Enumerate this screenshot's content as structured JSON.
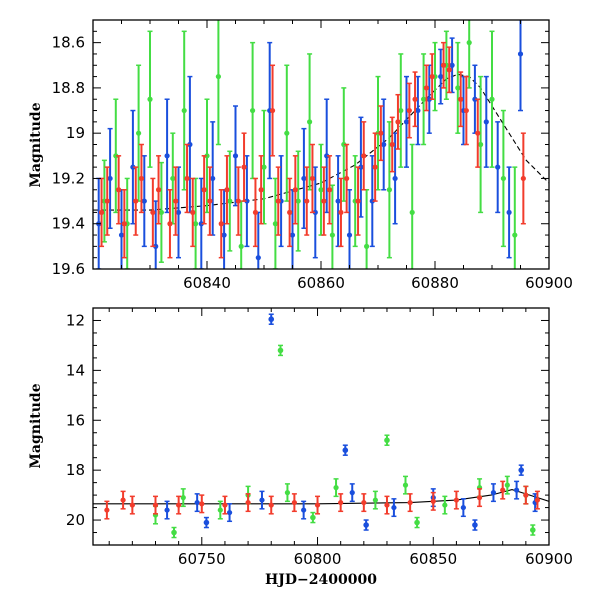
{
  "colors": {
    "g": "#44dd44",
    "b": "#1a4fdd",
    "r": "#f23c2c",
    "model": "#000000"
  },
  "chart_data": [
    {
      "type": "scatter",
      "ylabel": "Magnitude",
      "xlabel": "",
      "xlim": [
        60820,
        60900
      ],
      "ylim": [
        19.6,
        18.5
      ],
      "y_inverted": true,
      "xticks": [
        60840,
        60860,
        60880,
        60900
      ],
      "yticks": [
        18.6,
        18.8,
        19,
        19.2,
        19.4,
        19.6
      ],
      "tick_labels_x": [
        "60840",
        "60860",
        "60880",
        "60900"
      ],
      "tick_labels_y": [
        "18.6",
        "18.8",
        "19",
        "19.2",
        "19.4",
        "19.6"
      ],
      "series": [
        {
          "color_key": "g",
          "points": [
            [
              60822,
              19.3,
              0.18
            ],
            [
              60824,
              19.1,
              0.25
            ],
            [
              60826,
              19.4,
              0.2
            ],
            [
              60828,
              19.0,
              0.3
            ],
            [
              60830,
              18.85,
              0.3
            ],
            [
              60832,
              19.35,
              0.22
            ],
            [
              60834,
              19.2,
              0.2
            ],
            [
              60836,
              18.9,
              0.35
            ],
            [
              60838,
              19.4,
              0.2
            ],
            [
              60840,
              19.1,
              0.25
            ],
            [
              60842,
              18.75,
              0.3
            ],
            [
              60844,
              19.3,
              0.22
            ],
            [
              60846,
              19.5,
              0.2
            ],
            [
              60848,
              18.9,
              0.3
            ],
            [
              60850,
              19.15,
              0.25
            ],
            [
              60852,
              19.4,
              0.2
            ],
            [
              60854,
              19.0,
              0.3
            ],
            [
              60856,
              19.3,
              0.22
            ],
            [
              60858,
              18.95,
              0.3
            ],
            [
              60860,
              19.25,
              0.2
            ],
            [
              60862,
              19.45,
              0.22
            ],
            [
              60864,
              19.05,
              0.25
            ],
            [
              60866,
              19.3,
              0.2
            ],
            [
              60868,
              19.5,
              0.25
            ],
            [
              60870,
              19.0,
              0.25
            ],
            [
              60872,
              19.25,
              0.3
            ],
            [
              60874,
              18.9,
              0.25
            ],
            [
              60876,
              19.35,
              0.3
            ],
            [
              60878,
              18.85,
              0.2
            ],
            [
              60880,
              18.75,
              0.15
            ],
            [
              60882,
              18.7,
              0.15
            ],
            [
              60884,
              18.8,
              0.2
            ],
            [
              60886,
              18.6,
              0.2
            ],
            [
              60888,
              19.05,
              0.3
            ],
            [
              60890,
              18.85,
              0.3
            ],
            [
              60892,
              19.2,
              0.3
            ],
            [
              60894,
              19.45,
              0.3
            ]
          ]
        },
        {
          "color_key": "b",
          "points": [
            [
              60821,
              19.4,
              0.2
            ],
            [
              60823,
              19.2,
              0.22
            ],
            [
              60825,
              19.45,
              0.2
            ],
            [
              60827,
              19.15,
              0.25
            ],
            [
              60829,
              19.3,
              0.2
            ],
            [
              60831,
              19.5,
              0.2
            ],
            [
              60833,
              19.1,
              0.25
            ],
            [
              60835,
              19.35,
              0.2
            ],
            [
              60837,
              19.05,
              0.3
            ],
            [
              60839,
              19.4,
              0.2
            ],
            [
              60841,
              19.2,
              0.25
            ],
            [
              60843,
              19.45,
              0.2
            ],
            [
              60845,
              19.1,
              0.22
            ],
            [
              60847,
              19.3,
              0.2
            ],
            [
              60849,
              19.55,
              0.2
            ],
            [
              60851,
              18.9,
              0.3
            ],
            [
              60853,
              19.3,
              0.2
            ],
            [
              60855,
              19.45,
              0.2
            ],
            [
              60857,
              19.2,
              0.22
            ],
            [
              60859,
              19.35,
              0.2
            ],
            [
              60861,
              19.1,
              0.25
            ],
            [
              60863,
              19.3,
              0.2
            ],
            [
              60865,
              19.45,
              0.2
            ],
            [
              60867,
              19.15,
              0.22
            ],
            [
              60869,
              19.3,
              0.2
            ],
            [
              60871,
              19.05,
              0.2
            ],
            [
              60873,
              19.2,
              0.2
            ],
            [
              60875,
              18.95,
              0.2
            ],
            [
              60877,
              18.9,
              0.15
            ],
            [
              60879,
              18.85,
              0.15
            ],
            [
              60881,
              18.75,
              0.12
            ],
            [
              60883,
              18.7,
              0.12
            ],
            [
              60885,
              18.9,
              0.15
            ],
            [
              60887,
              18.85,
              0.15
            ],
            [
              60889,
              18.95,
              0.2
            ],
            [
              60891,
              19.15,
              0.2
            ],
            [
              60893,
              19.35,
              0.2
            ],
            [
              60895,
              18.65,
              0.25
            ]
          ]
        },
        {
          "color_key": "r",
          "points": [
            [
              60821.5,
              19.35,
              0.15
            ],
            [
              60822.5,
              19.3,
              0.15
            ],
            [
              60824.5,
              19.25,
              0.15
            ],
            [
              60825.5,
              19.4,
              0.15
            ],
            [
              60827.5,
              19.3,
              0.15
            ],
            [
              60828.5,
              19.2,
              0.15
            ],
            [
              60830.5,
              19.35,
              0.15
            ],
            [
              60831.5,
              19.25,
              0.15
            ],
            [
              60833.5,
              19.4,
              0.15
            ],
            [
              60834.5,
              19.3,
              0.15
            ],
            [
              60836.5,
              19.2,
              0.15
            ],
            [
              60837.5,
              19.35,
              0.15
            ],
            [
              60839.5,
              19.25,
              0.15
            ],
            [
              60840.5,
              19.3,
              0.15
            ],
            [
              60842.5,
              19.4,
              0.15
            ],
            [
              60843.5,
              19.25,
              0.15
            ],
            [
              60845.5,
              19.3,
              0.15
            ],
            [
              60846.5,
              19.15,
              0.15
            ],
            [
              60848.5,
              19.35,
              0.15
            ],
            [
              60849.5,
              19.25,
              0.15
            ],
            [
              60851.5,
              18.9,
              0.2
            ],
            [
              60852.5,
              19.3,
              0.15
            ],
            [
              60854.5,
              19.35,
              0.15
            ],
            [
              60855.5,
              19.25,
              0.15
            ],
            [
              60857.5,
              19.3,
              0.15
            ],
            [
              60858.5,
              19.2,
              0.15
            ],
            [
              60860.5,
              19.3,
              0.15
            ],
            [
              60861.5,
              19.25,
              0.15
            ],
            [
              60863.5,
              19.35,
              0.15
            ],
            [
              60864.5,
              19.2,
              0.15
            ],
            [
              60866.5,
              19.3,
              0.15
            ],
            [
              60867.5,
              19.1,
              0.15
            ],
            [
              60869.5,
              19.15,
              0.15
            ],
            [
              60870.5,
              19.0,
              0.12
            ],
            [
              60872.5,
              19.05,
              0.12
            ],
            [
              60873.5,
              18.95,
              0.12
            ],
            [
              60875.5,
              18.9,
              0.12
            ],
            [
              60876.5,
              18.85,
              0.12
            ],
            [
              60878.5,
              18.8,
              0.1
            ],
            [
              60879.5,
              18.75,
              0.1
            ],
            [
              60881.5,
              18.7,
              0.1
            ],
            [
              60882.5,
              18.72,
              0.1
            ],
            [
              60884.5,
              18.85,
              0.12
            ],
            [
              60885.5,
              18.9,
              0.15
            ],
            [
              60887.5,
              19.0,
              0.15
            ],
            [
              60895.5,
              19.2,
              0.2
            ]
          ]
        }
      ],
      "model": {
        "style": "dashed",
        "points": [
          [
            60820,
            19.34
          ],
          [
            60830,
            19.34
          ],
          [
            60840,
            19.32
          ],
          [
            60850,
            19.29
          ],
          [
            60860,
            19.22
          ],
          [
            60866,
            19.14
          ],
          [
            60872,
            19.02
          ],
          [
            60878,
            18.86
          ],
          [
            60882,
            18.76
          ],
          [
            60884,
            18.74
          ],
          [
            60886,
            18.75
          ],
          [
            60888,
            18.8
          ],
          [
            60890,
            18.88
          ],
          [
            60893,
            19.0
          ],
          [
            60896,
            19.12
          ],
          [
            60900,
            19.22
          ]
        ]
      }
    },
    {
      "type": "scatter",
      "ylabel": "Magnitude",
      "xlabel": "HJD−2400000",
      "xlim": [
        60703,
        60900
      ],
      "ylim": [
        21,
        11.5
      ],
      "y_inverted": true,
      "xticks": [
        60750,
        60800,
        60850,
        60900
      ],
      "yticks": [
        12,
        14,
        16,
        18,
        20
      ],
      "tick_labels_x": [
        "60750",
        "60800",
        "60850",
        "60900"
      ],
      "tick_labels_y": [
        "12",
        "14",
        "16",
        "18",
        "20"
      ],
      "outliers": [
        [
          60780,
          11.95,
          "b"
        ],
        [
          60784,
          13.2,
          "g"
        ],
        [
          60812,
          17.2,
          "b"
        ],
        [
          60830,
          16.8,
          "g"
        ],
        [
          60738,
          20.5,
          "g"
        ],
        [
          60752,
          20.1,
          "b"
        ],
        [
          60798,
          19.9,
          "g"
        ],
        [
          60821,
          20.2,
          "b"
        ],
        [
          60843,
          20.1,
          "g"
        ],
        [
          60868,
          20.2,
          "b"
        ],
        [
          60888,
          18.0,
          "b"
        ],
        [
          60893,
          20.4,
          "g"
        ]
      ],
      "series": [
        {
          "color_key": "g",
          "points": [
            [
              60730,
              19.8
            ],
            [
              60742,
              19.1
            ],
            [
              60758,
              19.6
            ],
            [
              60770,
              19.0
            ],
            [
              60787,
              18.9
            ],
            [
              60808,
              18.7
            ],
            [
              60825,
              19.2
            ],
            [
              60838,
              18.6
            ],
            [
              60855,
              19.4
            ],
            [
              60870,
              18.7
            ],
            [
              60882,
              18.6
            ],
            [
              60890,
              19.0
            ]
          ]
        },
        {
          "color_key": "b",
          "points": [
            [
              60735,
              19.6
            ],
            [
              60748,
              19.3
            ],
            [
              60762,
              19.7
            ],
            [
              60776,
              19.2
            ],
            [
              60794,
              19.6
            ],
            [
              60815,
              18.9
            ],
            [
              60833,
              19.5
            ],
            [
              60850,
              19.1
            ],
            [
              60863,
              19.5
            ],
            [
              60876,
              18.9
            ],
            [
              60886,
              18.8
            ],
            [
              60894,
              19.3
            ]
          ]
        },
        {
          "color_key": "r",
          "points": [
            [
              60709,
              19.6
            ],
            [
              60716,
              19.2
            ],
            [
              60720,
              19.4
            ],
            [
              60730,
              19.4
            ],
            [
              60740,
              19.4
            ],
            [
              60750,
              19.35
            ],
            [
              60760,
              19.4
            ],
            [
              60770,
              19.3
            ],
            [
              60780,
              19.4
            ],
            [
              60790,
              19.3
            ],
            [
              60800,
              19.4
            ],
            [
              60810,
              19.3
            ],
            [
              60820,
              19.3
            ],
            [
              60830,
              19.4
            ],
            [
              60840,
              19.3
            ],
            [
              60850,
              19.25
            ],
            [
              60860,
              19.2
            ],
            [
              60870,
              19.1
            ],
            [
              60880,
              18.8
            ],
            [
              60890,
              19.0
            ],
            [
              60895,
              19.2
            ]
          ]
        }
      ],
      "model": {
        "style": "solid",
        "points": [
          [
            60703,
            19.35
          ],
          [
            60750,
            19.35
          ],
          [
            60800,
            19.35
          ],
          [
            60840,
            19.3
          ],
          [
            60860,
            19.2
          ],
          [
            60875,
            19.0
          ],
          [
            60884,
            18.78
          ],
          [
            60890,
            18.95
          ],
          [
            60900,
            19.25
          ]
        ]
      }
    }
  ]
}
